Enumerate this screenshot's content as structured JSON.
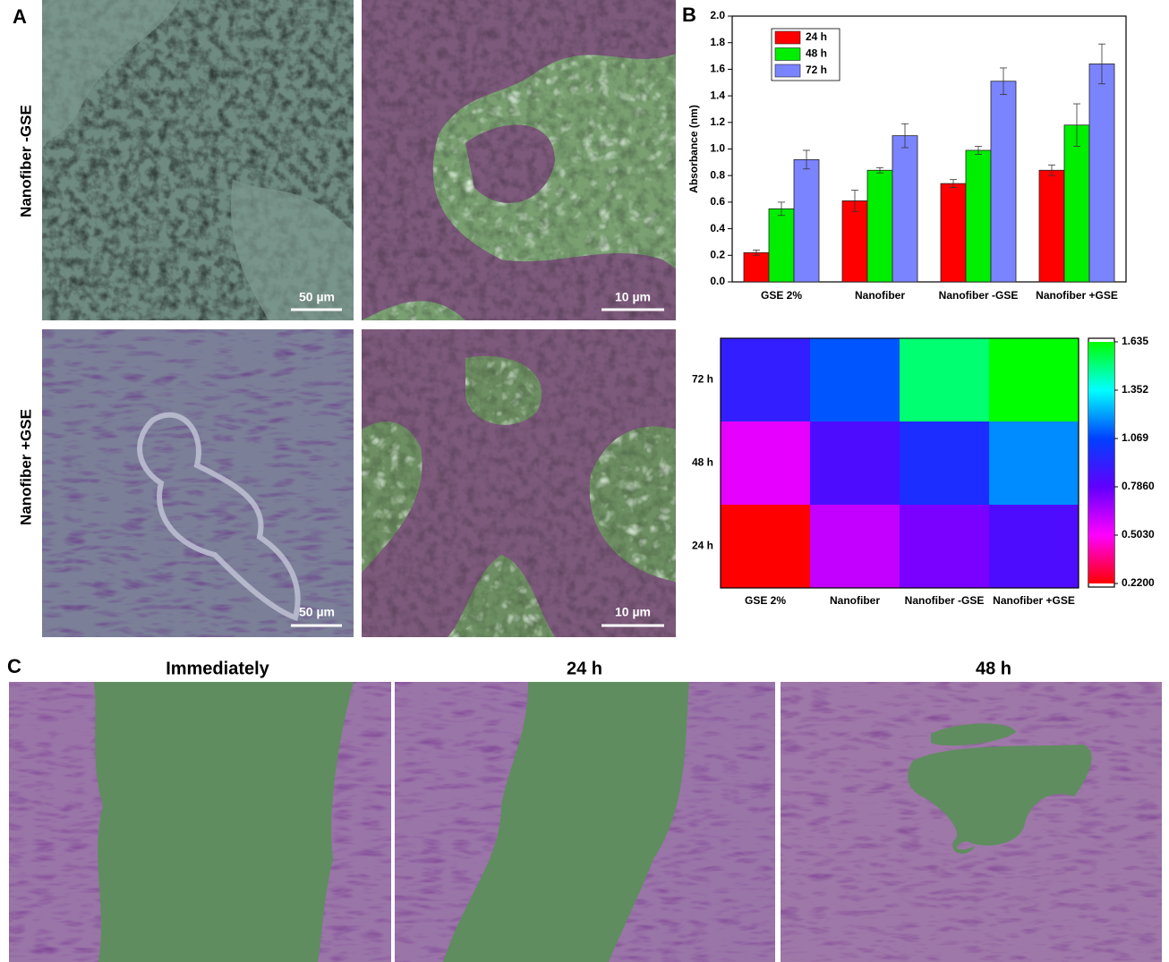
{
  "panel_labels": [
    "A",
    "B",
    "C"
  ],
  "panel_a": {
    "row_labels": [
      "Nanofiber -GSE",
      "Nanofiber +GSE"
    ],
    "scale_bars": [
      "50 µm",
      "10 µm",
      "50 µm",
      "10 µm"
    ]
  },
  "chart_data": [
    {
      "type": "bar",
      "ylabel": "Absorbance (nm)",
      "categories": [
        "GSE 2%",
        "Nanofiber",
        "Nanofiber -GSE",
        "Nanofiber +GSE"
      ],
      "series": [
        {
          "name": "24 h",
          "color": "#ff0000",
          "values": [
            0.22,
            0.61,
            0.74,
            0.84
          ],
          "errors": [
            0.02,
            0.08,
            0.03,
            0.04
          ]
        },
        {
          "name": "48 h",
          "color": "#00ee00",
          "values": [
            0.55,
            0.84,
            0.99,
            1.18
          ],
          "errors": [
            0.05,
            0.02,
            0.03,
            0.16
          ]
        },
        {
          "name": "72 h",
          "color": "#7b84ff",
          "values": [
            0.92,
            1.1,
            1.51,
            1.64
          ],
          "errors": [
            0.07,
            0.09,
            0.1,
            0.15
          ]
        }
      ],
      "ylim": [
        0,
        2
      ],
      "yticks": [
        {
          "value": 0,
          "label": "0.0"
        },
        0.2,
        0.4,
        0.6,
        0.8,
        {
          "value": 1,
          "label": "1.0"
        },
        1.2,
        1.4,
        1.6,
        1.8,
        {
          "value": 2,
          "label": "2.0"
        }
      ],
      "legend": "upper left"
    },
    {
      "type": "heatmap",
      "x_categories": [
        "GSE 2%",
        "Nanofiber",
        "Nanofiber -GSE",
        "Nanofiber +GSE"
      ],
      "y_categories": [
        "24 h",
        "48 h",
        "72 h"
      ],
      "values": [
        [
          0.22,
          0.61,
          0.74,
          0.84
        ],
        [
          0.55,
          0.84,
          0.99,
          1.18
        ],
        [
          0.92,
          1.1,
          1.51,
          1.635
        ]
      ],
      "zlim": [
        0.22,
        1.635
      ],
      "zticks": [
        {
          "value": 0.22,
          "label": "0.2200"
        },
        {
          "value": 0.503,
          "label": "0.5030"
        },
        {
          "value": 0.786,
          "label": "0.7860"
        },
        1.069,
        1.352,
        1.635
      ],
      "colormap": [
        "#ff0000",
        "#ff00ff",
        "#6000ff",
        "#0040ff",
        "#00ffff",
        "#00ff00"
      ]
    }
  ],
  "panel_c": {
    "titles": [
      "Immediately",
      "24 h",
      "48 h"
    ]
  }
}
